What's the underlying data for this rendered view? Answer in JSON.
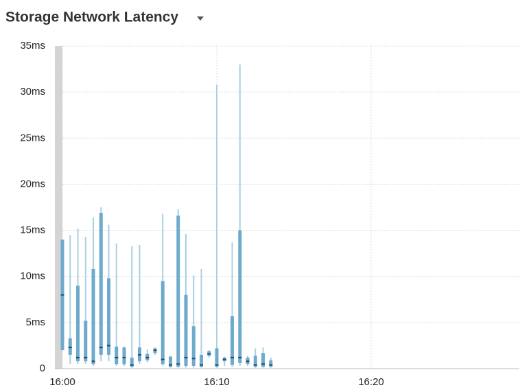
{
  "chart_data": {
    "type": "box",
    "title": "Storage Network Latency",
    "x": [
      0,
      0.5,
      1,
      1.5,
      2,
      2.5,
      3,
      3.5,
      4,
      4.5,
      5,
      5.5,
      6,
      6.5,
      7,
      7.5,
      8,
      8.5,
      9,
      9.5,
      10,
      10.5,
      11,
      11.5,
      12,
      12.5,
      13,
      13.5
    ],
    "min": [
      2,
      0.5,
      0.5,
      0.5,
      0.3,
      0.8,
      0.8,
      0.3,
      0.3,
      0.1,
      0.5,
      0.7,
      1.5,
      0.3,
      0.1,
      0.1,
      0.1,
      0.1,
      0.1,
      1.2,
      0.1,
      0.3,
      0.2,
      0.3,
      0.3,
      0.1,
      0.1,
      0.1
    ],
    "q1": [
      2,
      1.5,
      0.8,
      0.8,
      0.5,
      1.5,
      1.5,
      0.5,
      0.5,
      0.2,
      0.8,
      0.9,
      1.7,
      0.5,
      0.2,
      0.2,
      0.3,
      0.3,
      0.2,
      1.4,
      0.2,
      0.8,
      0.4,
      0.6,
      0.5,
      0.2,
      0.2,
      0.2
    ],
    "median": [
      8,
      2.3,
      1.2,
      1.2,
      0.8,
      2.3,
      2.5,
      1.2,
      1.2,
      0.4,
      1.5,
      1.2,
      2.0,
      1.0,
      0.4,
      0.5,
      1.2,
      1.1,
      0.4,
      1.6,
      0.4,
      1.0,
      1.2,
      1.2,
      0.8,
      0.4,
      0.5,
      0.4
    ],
    "q3": [
      14,
      3.3,
      9,
      5.2,
      10.8,
      16.9,
      9.8,
      2.4,
      2.3,
      1.2,
      2.3,
      1.6,
      2.2,
      9.5,
      1.3,
      16.6,
      8.0,
      4.6,
      1.5,
      1.9,
      2.2,
      1.2,
      5.7,
      15,
      1.2,
      1.4,
      1.7,
      0.9
    ],
    "max": [
      14,
      14.5,
      15.2,
      14.3,
      16.4,
      17.5,
      15.6,
      13.6,
      2.4,
      13.3,
      13.4,
      2.1,
      2.3,
      16.8,
      1.4,
      17.3,
      14.6,
      10.1,
      10.8,
      2.0,
      30.8,
      1.3,
      13.7,
      33,
      1.4,
      2.2,
      2.3,
      1.2
    ],
    "whisker_color": "#a9cfe1",
    "box_color": "#6eaacb",
    "median_color": "#1b4b66",
    "xlim": [
      0,
      29.6
    ],
    "xticks": [
      {
        "value": 0,
        "label": "16:00"
      },
      {
        "value": 10,
        "label": "16:10"
      },
      {
        "value": 20,
        "label": "16:20"
      }
    ],
    "ylim": [
      0,
      35
    ],
    "yticks": [
      0,
      {
        "value": 5,
        "label": "5ms"
      },
      {
        "value": 10,
        "label": "10ms"
      },
      {
        "value": 15,
        "label": "15ms"
      },
      {
        "value": 20,
        "label": "20ms"
      },
      {
        "value": 25,
        "label": "25ms"
      },
      {
        "value": 30,
        "label": "30ms"
      },
      {
        "value": 35,
        "label": "35ms"
      }
    ],
    "grid": true
  }
}
